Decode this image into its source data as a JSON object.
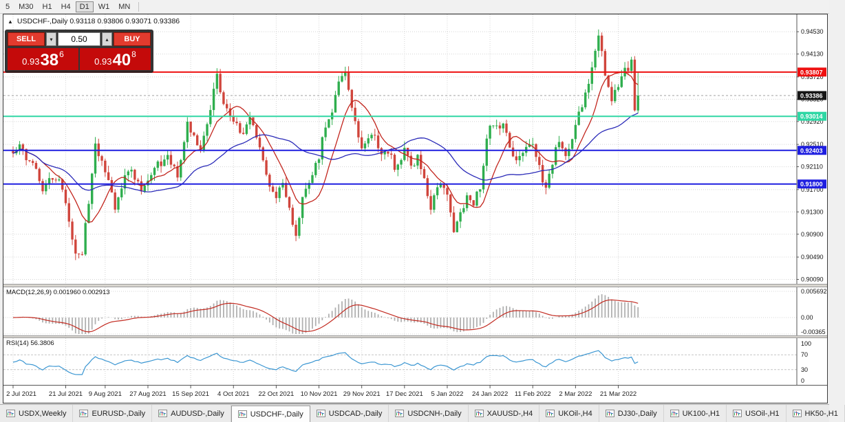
{
  "toolbar": {
    "timeframes": [
      {
        "label": "5",
        "active": false
      },
      {
        "label": "M30",
        "active": false
      },
      {
        "label": "H1",
        "active": false
      },
      {
        "label": "H4",
        "active": false
      },
      {
        "label": "D1",
        "active": true
      },
      {
        "label": "W1",
        "active": false
      },
      {
        "label": "MN",
        "active": false
      }
    ]
  },
  "chart": {
    "collapse_glyph": "▲",
    "title_line": "USDCHF-,Daily 0.93118 0.93806 0.93071 0.93386"
  },
  "trade_panel": {
    "sell_label": "SELL",
    "buy_label": "BUY",
    "volume": "0.50",
    "step_down_glyph": "▾",
    "step_up_glyph": "▴",
    "sell_price": {
      "big": "0.93",
      "pips": "38",
      "pipette": "6"
    },
    "buy_price": {
      "big": "0.93",
      "pips": "40",
      "pipette": "8"
    }
  },
  "macd": {
    "label": "MACD(12,26,9) 0.001960 0.002913"
  },
  "rsi": {
    "label": "RSI(14) 56.3806"
  },
  "tabs": [
    {
      "label": "USDX,Weekly",
      "active": false
    },
    {
      "label": "EURUSD-,Daily",
      "active": false
    },
    {
      "label": "AUDUSD-,Daily",
      "active": false
    },
    {
      "label": "USDCHF-,Daily",
      "active": true
    },
    {
      "label": "USDCAD-,Daily",
      "active": false
    },
    {
      "label": "USDCNH-,Daily",
      "active": false
    },
    {
      "label": "XAUUSD-,H4",
      "active": false
    },
    {
      "label": "UKOil-,H4",
      "active": false
    },
    {
      "label": "DJ30-,Daily",
      "active": false
    },
    {
      "label": "UK100-,H1",
      "active": false
    },
    {
      "label": "USOil-,H1",
      "active": false
    },
    {
      "label": "HK50-,H1",
      "active": false
    }
  ],
  "chart_data": {
    "type": "candlestick",
    "symbol": "USDCHF",
    "timeframe": "Daily",
    "last_ohlc": {
      "open": 0.93118,
      "high": 0.93806,
      "low": 0.93071,
      "close": 0.93386
    },
    "bars": 191,
    "bar_anchors": [
      [
        0,
        0.9235
      ],
      [
        2,
        0.9258
      ],
      [
        4,
        0.923
      ],
      [
        7,
        0.9205
      ],
      [
        9,
        0.9165
      ],
      [
        12,
        0.9195
      ],
      [
        15,
        0.9175
      ],
      [
        17,
        0.911
      ],
      [
        19,
        0.9048
      ],
      [
        21,
        0.9055
      ],
      [
        23,
        0.915
      ],
      [
        25,
        0.9248
      ],
      [
        28,
        0.9205
      ],
      [
        31,
        0.9142
      ],
      [
        34,
        0.9196
      ],
      [
        36,
        0.9208
      ],
      [
        39,
        0.9168
      ],
      [
        41,
        0.9182
      ],
      [
        44,
        0.9216
      ],
      [
        47,
        0.9228
      ],
      [
        50,
        0.9198
      ],
      [
        53,
        0.9292
      ],
      [
        55,
        0.9262
      ],
      [
        57,
        0.9245
      ],
      [
        59,
        0.9286
      ],
      [
        61,
        0.9346
      ],
      [
        62,
        0.9372
      ],
      [
        64,
        0.933
      ],
      [
        66,
        0.9302
      ],
      [
        68,
        0.9282
      ],
      [
        70,
        0.9272
      ],
      [
        72,
        0.9296
      ],
      [
        74,
        0.9262
      ],
      [
        76,
        0.9228
      ],
      [
        78,
        0.9168
      ],
      [
        80,
        0.9158
      ],
      [
        82,
        0.9188
      ],
      [
        84,
        0.9132
      ],
      [
        86,
        0.9092
      ],
      [
        88,
        0.9152
      ],
      [
        90,
        0.9182
      ],
      [
        93,
        0.9228
      ],
      [
        95,
        0.9288
      ],
      [
        97,
        0.9302
      ],
      [
        99,
        0.9362
      ],
      [
        101,
        0.9376
      ],
      [
        103,
        0.9322
      ],
      [
        105,
        0.9262
      ],
      [
        106,
        0.9242
      ],
      [
        108,
        0.9268
      ],
      [
        110,
        0.9272
      ],
      [
        112,
        0.9228
      ],
      [
        114,
        0.9242
      ],
      [
        116,
        0.9212
      ],
      [
        119,
        0.9238
      ],
      [
        121,
        0.9212
      ],
      [
        123,
        0.9228
      ],
      [
        125,
        0.9188
      ],
      [
        127,
        0.9138
      ],
      [
        129,
        0.9182
      ],
      [
        132,
        0.9158
      ],
      [
        134,
        0.9098
      ],
      [
        136,
        0.9122
      ],
      [
        138,
        0.9158
      ],
      [
        140,
        0.9142
      ],
      [
        142,
        0.9178
      ],
      [
        144,
        0.9258
      ],
      [
        145,
        0.9292
      ],
      [
        147,
        0.9278
      ],
      [
        149,
        0.9296
      ],
      [
        151,
        0.9252
      ],
      [
        153,
        0.9218
      ],
      [
        155,
        0.9238
      ],
      [
        157,
        0.9258
      ],
      [
        158,
        0.9248
      ],
      [
        160,
        0.9208
      ],
      [
        162,
        0.9172
      ],
      [
        164,
        0.9222
      ],
      [
        166,
        0.9262
      ],
      [
        168,
        0.9228
      ],
      [
        170,
        0.9262
      ],
      [
        171,
        0.9282
      ],
      [
        173,
        0.9322
      ],
      [
        175,
        0.9362
      ],
      [
        177,
        0.9412
      ],
      [
        178,
        0.9442
      ],
      [
        180,
        0.9382
      ],
      [
        182,
        0.9332
      ],
      [
        184,
        0.9352
      ],
      [
        186,
        0.9382
      ],
      [
        188,
        0.9396
      ],
      [
        189,
        0.9312
      ],
      [
        190,
        0.93386
      ]
    ],
    "price_range": {
      "min": 0.9001,
      "max": 0.9484
    },
    "y_ticks": [
      "0.94530",
      "0.94130",
      "0.93720",
      "0.93320",
      "0.92920",
      "0.92510",
      "0.92110",
      "0.91700",
      "0.91300",
      "0.90900",
      "0.90490",
      "0.90090"
    ],
    "hlines": [
      {
        "price": 0.93807,
        "label": "0.93807",
        "color": "#ee1010"
      },
      {
        "price": 0.93014,
        "label": "0.93014",
        "color": "#2fd7a4"
      },
      {
        "price": 0.92403,
        "label": "0.92403",
        "color": "#1f1fe0"
      },
      {
        "price": 0.918,
        "label": "0.91800",
        "color": "#1f1fe0"
      }
    ],
    "last_price_label": {
      "text": "0.93386",
      "color": "#161616"
    },
    "x_dates": [
      "2 Jul 2021",
      "21 Jul 2021",
      "9 Aug 2021",
      "27 Aug 2021",
      "15 Sep 2021",
      "4 Oct 2021",
      "22 Oct 2021",
      "10 Nov 2021",
      "29 Nov 2021",
      "17 Dec 2021",
      "5 Jan 2022",
      "24 Jan 2022",
      "11 Feb 2022",
      "2 Mar 2022",
      "21 Mar 2022"
    ],
    "x_date_bars": [
      0,
      16,
      28,
      41,
      54,
      67,
      80,
      93,
      106,
      119,
      132,
      145,
      158,
      171,
      184
    ],
    "moving_averages": [
      {
        "period": 10,
        "color": "#c2241c"
      },
      {
        "period": 34,
        "color": "#2a2ab8"
      }
    ],
    "macd": {
      "fast": 12,
      "slow": 26,
      "signal": 9,
      "current_values": [
        "0.001960",
        "0.002913"
      ],
      "y_ticks": [
        {
          "v": 0.005692,
          "label": "0.005692"
        },
        {
          "v": 0,
          "label": "0.00"
        },
        {
          "v": -0.00365,
          "label": "-0.00365"
        }
      ],
      "hist_color": "#b0b0b0",
      "signal_color": "#c22a20"
    },
    "rsi": {
      "period": 14,
      "current_value": 56.3806,
      "levels": [
        {
          "v": 100,
          "label": "100"
        },
        {
          "v": 70,
          "label": "70"
        },
        {
          "v": 30,
          "label": "30"
        },
        {
          "v": 0,
          "label": "0"
        }
      ],
      "line_color": "#3a96d2"
    },
    "candle_colors": {
      "bull": "#2fae4e",
      "bear": "#d0453c"
    },
    "grid_color": "#d4d4d4"
  }
}
